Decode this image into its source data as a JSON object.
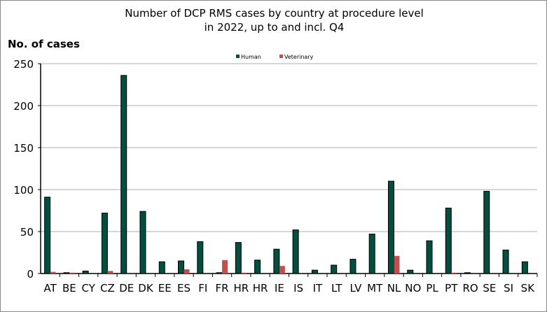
{
  "chart_data": {
    "type": "bar",
    "title": "Number of DCP RMS cases by country at procedure level in 2022, up to and incl. Q4",
    "title_lines": [
      "Number of DCP RMS cases by country at procedure level",
      "in 2022, up to and incl. Q4"
    ],
    "ylabel": "No. of cases",
    "xlabel": "",
    "ylim": [
      0,
      250
    ],
    "yticks": [
      0,
      50,
      100,
      150,
      200,
      250
    ],
    "grid": true,
    "legend": "top-center",
    "categories": [
      "AT",
      "BE",
      "CY",
      "CZ",
      "DE",
      "DK",
      "EE",
      "ES",
      "FI",
      "FR",
      "HR",
      "HR",
      "IE",
      "IS",
      "IT",
      "LT",
      "LV",
      "MT",
      "NL",
      "NO",
      "PL",
      "PT",
      "RO",
      "SE",
      "SI",
      "SK"
    ],
    "series": [
      {
        "name": "Human",
        "color": "#004f3f",
        "values": [
          91,
          1,
          3,
          72,
          236,
          74,
          14,
          15,
          38,
          1,
          37,
          16,
          29,
          52,
          4,
          10,
          17,
          47,
          110,
          4,
          39,
          78,
          1,
          98,
          28,
          14
        ]
      },
      {
        "name": "Veterinary",
        "color": "#c0504d",
        "values": [
          2,
          1,
          0,
          3,
          0,
          0,
          0,
          5,
          0,
          16,
          1,
          0,
          9,
          0,
          0,
          0,
          0,
          0,
          21,
          0,
          0,
          1,
          0,
          0,
          0,
          0
        ]
      }
    ]
  }
}
